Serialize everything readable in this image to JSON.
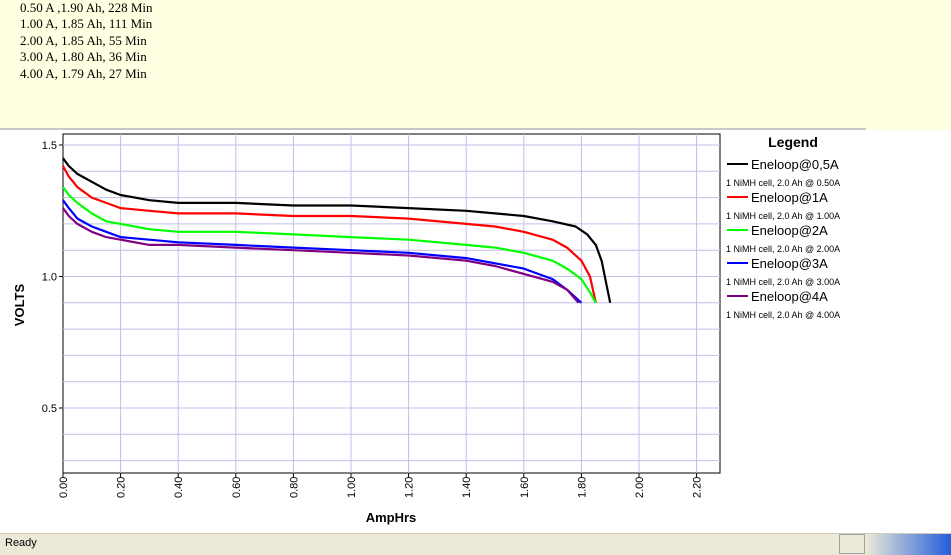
{
  "notes": [
    "0.50 A ,1.90 Ah, 228 Min",
    "1.00 A, 1.85 Ah, 111 Min",
    "2.00 A, 1.85 Ah, 55 Min",
    "3.00 A, 1.80 Ah, 36 Min",
    "4.00 A, 1.79 Ah, 27 Min"
  ],
  "status": {
    "text": "Ready"
  },
  "chart_data": {
    "type": "line",
    "xlabel": "AmpHrs",
    "ylabel": "VOLTS",
    "xlim": [
      0,
      2.3
    ],
    "ylim": [
      0.25,
      1.55
    ],
    "xticks": [
      "0.00",
      "0.20",
      "0.40",
      "0.60",
      "0.80",
      "1.00",
      "1.20",
      "1.40",
      "1.60",
      "1.80",
      "2.00",
      "2.20"
    ],
    "yticks": [
      "0.5",
      "1.0",
      "1.5"
    ],
    "grid": true,
    "legend": {
      "title": "Legend",
      "placement": "right"
    },
    "series": [
      {
        "name": "Eneloop@0,5A",
        "description": "1 NiMH cell, 2.0 Ah @ 0.50A",
        "color": "#000000",
        "points": [
          [
            0,
            1.45
          ],
          [
            0.02,
            1.42
          ],
          [
            0.05,
            1.39
          ],
          [
            0.1,
            1.36
          ],
          [
            0.15,
            1.33
          ],
          [
            0.2,
            1.31
          ],
          [
            0.3,
            1.29
          ],
          [
            0.4,
            1.28
          ],
          [
            0.6,
            1.28
          ],
          [
            0.8,
            1.27
          ],
          [
            1.0,
            1.27
          ],
          [
            1.2,
            1.26
          ],
          [
            1.4,
            1.25
          ],
          [
            1.5,
            1.24
          ],
          [
            1.6,
            1.23
          ],
          [
            1.7,
            1.21
          ],
          [
            1.78,
            1.19
          ],
          [
            1.82,
            1.16
          ],
          [
            1.85,
            1.12
          ],
          [
            1.87,
            1.06
          ],
          [
            1.885,
            0.98
          ],
          [
            1.9,
            0.9
          ]
        ]
      },
      {
        "name": "Eneloop@1A",
        "description": "1 NiMH cell, 2.0 Ah @ 1.00A",
        "color": "#ff0000",
        "points": [
          [
            0,
            1.42
          ],
          [
            0.02,
            1.38
          ],
          [
            0.05,
            1.34
          ],
          [
            0.1,
            1.3
          ],
          [
            0.15,
            1.28
          ],
          [
            0.2,
            1.26
          ],
          [
            0.3,
            1.25
          ],
          [
            0.4,
            1.24
          ],
          [
            0.6,
            1.24
          ],
          [
            0.8,
            1.23
          ],
          [
            1.0,
            1.23
          ],
          [
            1.2,
            1.22
          ],
          [
            1.4,
            1.2
          ],
          [
            1.5,
            1.19
          ],
          [
            1.6,
            1.17
          ],
          [
            1.7,
            1.14
          ],
          [
            1.75,
            1.11
          ],
          [
            1.8,
            1.06
          ],
          [
            1.83,
            1.0
          ],
          [
            1.85,
            0.9
          ]
        ]
      },
      {
        "name": "Eneloop@2A",
        "description": "1 NiMH cell, 2.0 Ah @ 2.00A",
        "color": "#00ff00",
        "points": [
          [
            0,
            1.34
          ],
          [
            0.02,
            1.31
          ],
          [
            0.05,
            1.28
          ],
          [
            0.1,
            1.24
          ],
          [
            0.15,
            1.21
          ],
          [
            0.2,
            1.2
          ],
          [
            0.3,
            1.18
          ],
          [
            0.4,
            1.17
          ],
          [
            0.6,
            1.17
          ],
          [
            0.8,
            1.16
          ],
          [
            1.0,
            1.15
          ],
          [
            1.2,
            1.14
          ],
          [
            1.4,
            1.12
          ],
          [
            1.5,
            1.11
          ],
          [
            1.6,
            1.09
          ],
          [
            1.7,
            1.06
          ],
          [
            1.75,
            1.03
          ],
          [
            1.8,
            0.99
          ],
          [
            1.83,
            0.94
          ],
          [
            1.85,
            0.9
          ]
        ]
      },
      {
        "name": "Eneloop@3A",
        "description": "1 NiMH cell, 2.0 Ah @ 3.00A",
        "color": "#0000ff",
        "points": [
          [
            0,
            1.29
          ],
          [
            0.02,
            1.26
          ],
          [
            0.05,
            1.22
          ],
          [
            0.1,
            1.19
          ],
          [
            0.15,
            1.17
          ],
          [
            0.2,
            1.15
          ],
          [
            0.3,
            1.14
          ],
          [
            0.4,
            1.13
          ],
          [
            0.6,
            1.12
          ],
          [
            0.8,
            1.11
          ],
          [
            1.0,
            1.1
          ],
          [
            1.2,
            1.09
          ],
          [
            1.4,
            1.07
          ],
          [
            1.5,
            1.05
          ],
          [
            1.6,
            1.03
          ],
          [
            1.7,
            0.99
          ],
          [
            1.75,
            0.95
          ],
          [
            1.8,
            0.9
          ]
        ]
      },
      {
        "name": "Eneloop@4A",
        "description": "1 NiMH cell, 2.0 Ah @ 4.00A",
        "color": "#800080",
        "points": [
          [
            0,
            1.26
          ],
          [
            0.02,
            1.23
          ],
          [
            0.05,
            1.2
          ],
          [
            0.1,
            1.17
          ],
          [
            0.15,
            1.15
          ],
          [
            0.2,
            1.14
          ],
          [
            0.3,
            1.12
          ],
          [
            0.4,
            1.12
          ],
          [
            0.6,
            1.11
          ],
          [
            0.8,
            1.1
          ],
          [
            1.0,
            1.09
          ],
          [
            1.2,
            1.08
          ],
          [
            1.4,
            1.06
          ],
          [
            1.5,
            1.04
          ],
          [
            1.6,
            1.01
          ],
          [
            1.7,
            0.98
          ],
          [
            1.75,
            0.95
          ],
          [
            1.79,
            0.9
          ]
        ]
      }
    ]
  }
}
